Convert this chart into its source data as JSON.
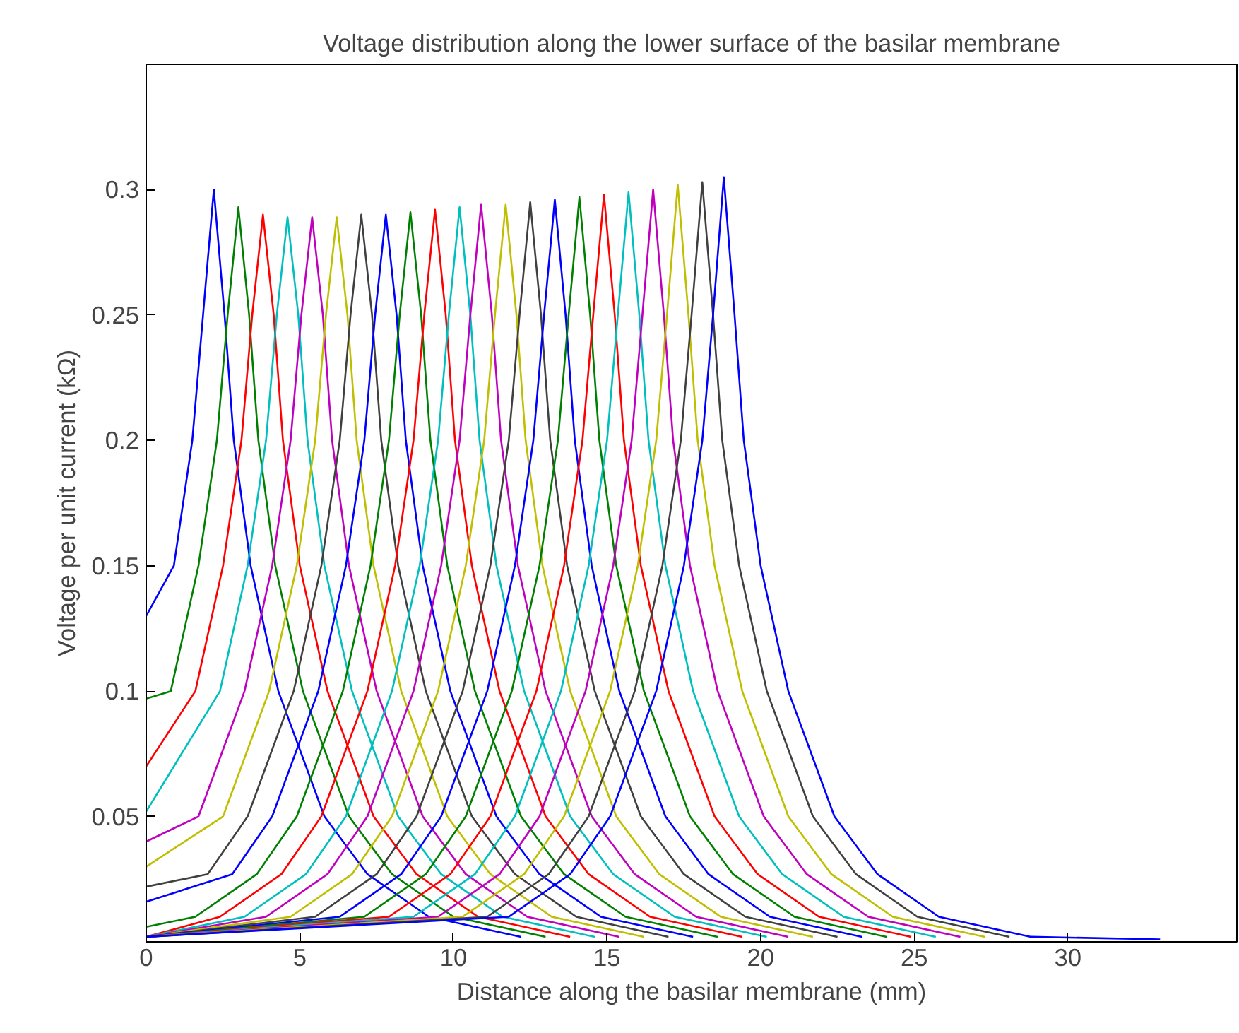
{
  "chart_data": {
    "type": "line",
    "title": "Voltage distribution along the lower surface of the basilar membrane",
    "xlabel": "Distance along the basilar membrane (mm)",
    "ylabel": "Voltage per unit current (kΩ)",
    "xlim": [
      0,
      35.5
    ],
    "ylim": [
      0,
      0.35
    ],
    "xticks": [
      0,
      5,
      10,
      15,
      20,
      25,
      30
    ],
    "yticks": [
      0.05,
      0.1,
      0.15,
      0.2,
      0.25,
      0.3
    ],
    "grid": false,
    "marker": "none",
    "line_style": "solid",
    "series": [
      {
        "color": "#0000ff",
        "x": [
          0,
          0.9,
          1.5,
          1.85,
          2.2,
          2.55,
          2.85,
          3.4,
          4.3,
          5.8,
          7.2,
          9.2,
          12.2
        ],
        "values": [
          0.13,
          0.15,
          0.2,
          0.25,
          0.3,
          0.25,
          0.2,
          0.15,
          0.1,
          0.05,
          0.027,
          0.01,
          0.002
        ]
      },
      {
        "color": "#008000",
        "x": [
          0,
          0.8,
          1.7,
          2.3,
          2.65,
          3,
          3.35,
          3.65,
          4.2,
          5.1,
          6.6,
          8,
          10,
          13
        ],
        "values": [
          0.097,
          0.1,
          0.15,
          0.2,
          0.25,
          0.293,
          0.25,
          0.2,
          0.15,
          0.1,
          0.05,
          0.027,
          0.01,
          0.002
        ]
      },
      {
        "color": "#ff0000",
        "x": [
          0,
          1.6,
          2.5,
          3.1,
          3.45,
          3.8,
          4.15,
          4.45,
          5,
          5.9,
          7.4,
          8.8,
          10.8,
          13.8
        ],
        "values": [
          0.07,
          0.1,
          0.15,
          0.2,
          0.25,
          0.29,
          0.25,
          0.2,
          0.15,
          0.1,
          0.05,
          0.027,
          0.01,
          0.002
        ]
      },
      {
        "color": "#00bfbf",
        "x": [
          0,
          2.4,
          3.3,
          3.9,
          4.25,
          4.6,
          4.95,
          5.25,
          5.8,
          6.7,
          8.2,
          9.6,
          11.6,
          14.6
        ],
        "values": [
          0.052,
          0.1,
          0.15,
          0.2,
          0.25,
          0.289,
          0.25,
          0.2,
          0.15,
          0.1,
          0.05,
          0.027,
          0.01,
          0.002
        ]
      },
      {
        "color": "#bf00bf",
        "x": [
          0,
          1.7,
          3.2,
          4.1,
          4.7,
          5.05,
          5.4,
          5.75,
          6.05,
          6.6,
          7.5,
          9,
          10.4,
          12.4,
          15.4
        ],
        "values": [
          0.04,
          0.05,
          0.1,
          0.15,
          0.2,
          0.25,
          0.289,
          0.25,
          0.2,
          0.15,
          0.1,
          0.05,
          0.027,
          0.01,
          0.002
        ]
      },
      {
        "color": "#bfbf00",
        "x": [
          0,
          2.5,
          4,
          4.9,
          5.5,
          5.85,
          6.2,
          6.55,
          6.85,
          7.4,
          8.3,
          9.8,
          11.2,
          13.2,
          16.2
        ],
        "values": [
          0.03,
          0.05,
          0.1,
          0.15,
          0.2,
          0.25,
          0.289,
          0.25,
          0.2,
          0.15,
          0.1,
          0.05,
          0.027,
          0.01,
          0.002
        ]
      },
      {
        "color": "#404040",
        "x": [
          0,
          2,
          3.3,
          4.8,
          5.7,
          6.3,
          6.65,
          7,
          7.35,
          7.65,
          8.2,
          9.1,
          10.6,
          12,
          14,
          17
        ],
        "values": [
          0.022,
          0.027,
          0.05,
          0.1,
          0.15,
          0.2,
          0.25,
          0.29,
          0.25,
          0.2,
          0.15,
          0.1,
          0.05,
          0.027,
          0.01,
          0.002
        ]
      },
      {
        "color": "#0000ff",
        "x": [
          0,
          2.8,
          4.1,
          5.6,
          6.5,
          7.1,
          7.45,
          7.8,
          8.15,
          8.45,
          9,
          9.9,
          11.4,
          12.8,
          14.8,
          17.8
        ],
        "values": [
          0.016,
          0.027,
          0.05,
          0.1,
          0.15,
          0.2,
          0.25,
          0.29,
          0.25,
          0.2,
          0.15,
          0.1,
          0.05,
          0.027,
          0.01,
          0.002
        ]
      },
      {
        "color": "#008000",
        "x": [
          0,
          1.6,
          3.6,
          4.9,
          6.4,
          7.3,
          7.9,
          8.25,
          8.6,
          8.95,
          9.25,
          9.8,
          10.7,
          12.2,
          13.6,
          15.6,
          18.6
        ],
        "values": [
          0.006,
          0.01,
          0.027,
          0.05,
          0.1,
          0.15,
          0.2,
          0.25,
          0.291,
          0.25,
          0.2,
          0.15,
          0.1,
          0.05,
          0.027,
          0.01,
          0.002
        ]
      },
      {
        "color": "#ff0000",
        "x": [
          0,
          2.4,
          4.4,
          5.7,
          7.2,
          8.1,
          8.7,
          9.05,
          9.4,
          9.75,
          10.05,
          10.6,
          11.5,
          13,
          14.4,
          16.4,
          19.4
        ],
        "values": [
          0.002,
          0.01,
          0.027,
          0.05,
          0.1,
          0.15,
          0.2,
          0.25,
          0.292,
          0.25,
          0.2,
          0.15,
          0.1,
          0.05,
          0.027,
          0.01,
          0.002
        ]
      },
      {
        "color": "#00bfbf",
        "x": [
          0,
          3.2,
          5.2,
          6.5,
          8,
          8.9,
          9.5,
          9.85,
          10.2,
          10.55,
          10.85,
          11.4,
          12.3,
          13.8,
          15.2,
          17.2,
          20.2
        ],
        "values": [
          0.002,
          0.01,
          0.027,
          0.05,
          0.1,
          0.15,
          0.2,
          0.25,
          0.293,
          0.25,
          0.2,
          0.15,
          0.1,
          0.05,
          0.027,
          0.01,
          0.002
        ]
      },
      {
        "color": "#bf00bf",
        "x": [
          0,
          3.9,
          5.9,
          7.2,
          8.7,
          9.6,
          10.2,
          10.55,
          10.9,
          11.25,
          11.55,
          12.1,
          13,
          14.5,
          15.9,
          17.9,
          20.9
        ],
        "values": [
          0.002,
          0.01,
          0.027,
          0.05,
          0.1,
          0.15,
          0.2,
          0.25,
          0.294,
          0.25,
          0.2,
          0.15,
          0.1,
          0.05,
          0.027,
          0.01,
          0.002
        ]
      },
      {
        "color": "#bfbf00",
        "x": [
          0,
          4.7,
          6.7,
          8,
          9.5,
          10.4,
          11,
          11.35,
          11.7,
          12.05,
          12.35,
          12.9,
          13.8,
          15.3,
          16.7,
          18.7,
          21.7
        ],
        "values": [
          0.002,
          0.01,
          0.027,
          0.05,
          0.1,
          0.15,
          0.2,
          0.25,
          0.294,
          0.25,
          0.2,
          0.15,
          0.1,
          0.05,
          0.027,
          0.01,
          0.002
        ]
      },
      {
        "color": "#404040",
        "x": [
          0,
          5.5,
          7.5,
          8.8,
          10.3,
          11.2,
          11.8,
          12.15,
          12.5,
          12.85,
          13.15,
          13.7,
          14.6,
          16.1,
          17.5,
          19.5,
          22.5
        ],
        "values": [
          0.002,
          0.01,
          0.027,
          0.05,
          0.1,
          0.15,
          0.2,
          0.25,
          0.295,
          0.25,
          0.2,
          0.15,
          0.1,
          0.05,
          0.027,
          0.01,
          0.002
        ]
      },
      {
        "color": "#0000ff",
        "x": [
          0,
          6.3,
          8.3,
          9.6,
          11.1,
          12,
          12.6,
          12.95,
          13.3,
          13.65,
          13.95,
          14.5,
          15.4,
          16.9,
          18.3,
          20.3,
          23.3
        ],
        "values": [
          0.002,
          0.01,
          0.027,
          0.05,
          0.1,
          0.15,
          0.2,
          0.25,
          0.296,
          0.25,
          0.2,
          0.15,
          0.1,
          0.05,
          0.027,
          0.01,
          0.002
        ]
      },
      {
        "color": "#008000",
        "x": [
          0,
          7.1,
          9.1,
          10.4,
          11.9,
          12.8,
          13.4,
          13.75,
          14.1,
          14.45,
          14.75,
          15.3,
          16.2,
          17.7,
          19.1,
          21.1,
          24.1
        ],
        "values": [
          0.002,
          0.01,
          0.027,
          0.05,
          0.1,
          0.15,
          0.2,
          0.25,
          0.297,
          0.25,
          0.2,
          0.15,
          0.1,
          0.05,
          0.027,
          0.01,
          0.002
        ]
      },
      {
        "color": "#ff0000",
        "x": [
          0,
          7.9,
          9.9,
          11.2,
          12.7,
          13.6,
          14.2,
          14.55,
          14.9,
          15.25,
          15.55,
          16.1,
          17,
          18.5,
          19.9,
          21.9,
          24.9
        ],
        "values": [
          0.002,
          0.01,
          0.027,
          0.05,
          0.1,
          0.15,
          0.2,
          0.25,
          0.298,
          0.25,
          0.2,
          0.15,
          0.1,
          0.05,
          0.027,
          0.01,
          0.002
        ]
      },
      {
        "color": "#00bfbf",
        "x": [
          0,
          8.7,
          10.7,
          12,
          13.5,
          14.4,
          15,
          15.35,
          15.7,
          16.05,
          16.35,
          16.9,
          17.8,
          19.3,
          20.7,
          22.7,
          25.7
        ],
        "values": [
          0.002,
          0.01,
          0.027,
          0.05,
          0.1,
          0.15,
          0.2,
          0.25,
          0.299,
          0.25,
          0.2,
          0.15,
          0.1,
          0.05,
          0.027,
          0.01,
          0.002
        ]
      },
      {
        "color": "#bf00bf",
        "x": [
          0,
          9.5,
          11.5,
          12.8,
          14.3,
          15.2,
          15.8,
          16.15,
          16.5,
          16.85,
          17.15,
          17.7,
          18.6,
          20.1,
          21.5,
          23.5,
          26.5
        ],
        "values": [
          0.002,
          0.01,
          0.027,
          0.05,
          0.1,
          0.15,
          0.2,
          0.25,
          0.3,
          0.25,
          0.2,
          0.15,
          0.1,
          0.05,
          0.027,
          0.01,
          0.002
        ]
      },
      {
        "color": "#bfbf00",
        "x": [
          0,
          10.3,
          12.3,
          13.6,
          15.1,
          16,
          16.6,
          16.95,
          17.3,
          17.65,
          17.95,
          18.5,
          19.4,
          20.9,
          22.3,
          24.3,
          27.3
        ],
        "values": [
          0.002,
          0.01,
          0.027,
          0.05,
          0.1,
          0.15,
          0.2,
          0.25,
          0.302,
          0.25,
          0.2,
          0.15,
          0.1,
          0.05,
          0.027,
          0.01,
          0.002
        ]
      },
      {
        "color": "#404040",
        "x": [
          0,
          11.1,
          13.1,
          14.4,
          15.9,
          16.8,
          17.4,
          17.75,
          18.1,
          18.45,
          18.75,
          19.3,
          20.2,
          21.7,
          23.1,
          25.1,
          28.1
        ],
        "values": [
          0.002,
          0.01,
          0.027,
          0.05,
          0.1,
          0.15,
          0.2,
          0.25,
          0.303,
          0.25,
          0.2,
          0.15,
          0.1,
          0.05,
          0.027,
          0.01,
          0.002
        ]
      },
      {
        "color": "#0000ff",
        "x": [
          0,
          11.8,
          13.8,
          15.1,
          16.6,
          17.5,
          18.1,
          18.45,
          18.8,
          19.15,
          19.45,
          20,
          20.9,
          22.4,
          23.8,
          25.8,
          28.8,
          33
        ],
        "values": [
          0.002,
          0.01,
          0.027,
          0.05,
          0.1,
          0.15,
          0.2,
          0.25,
          0.305,
          0.25,
          0.2,
          0.15,
          0.1,
          0.05,
          0.027,
          0.01,
          0.002,
          0.001
        ]
      }
    ]
  }
}
